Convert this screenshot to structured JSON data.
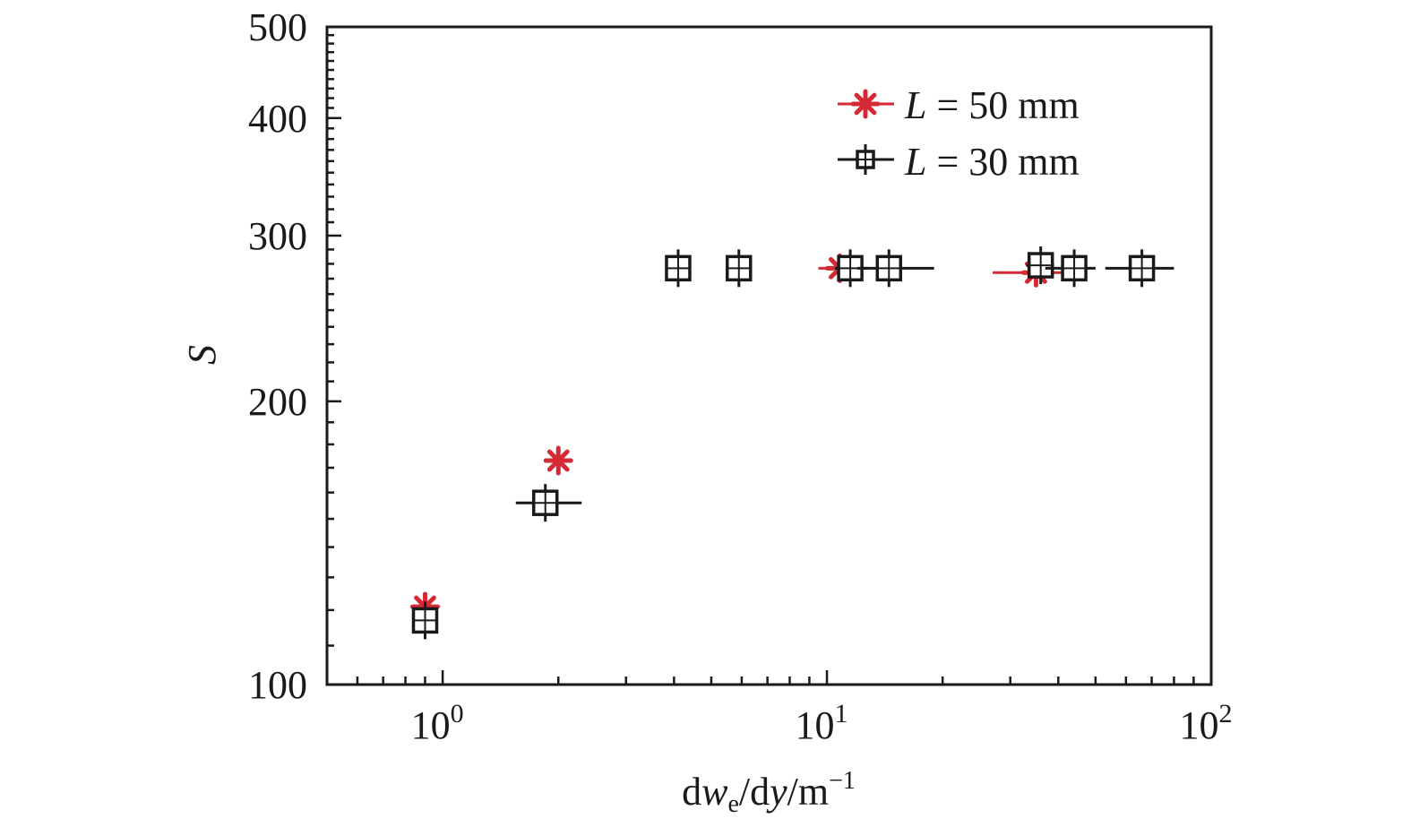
{
  "chart_data": {
    "type": "scatter",
    "title": "",
    "xlabel": {
      "d1": "d",
      "w": "w",
      "sub_e": "e",
      "mid": "/d",
      "y": "y",
      "unit": "/m",
      "sup": "−1"
    },
    "ylabel": "S",
    "x_scale": "log",
    "y_scale": "log",
    "xlim": [
      0.5,
      100
    ],
    "ylim": [
      100,
      500
    ],
    "x_ticks": [
      {
        "value": 1,
        "base": "10",
        "exp": "0"
      },
      {
        "value": 10,
        "base": "10",
        "exp": "1"
      },
      {
        "value": 100,
        "base": "10",
        "exp": "2"
      }
    ],
    "y_ticks": [
      {
        "value": 100,
        "label": "100"
      },
      {
        "value": 200,
        "label": "200"
      },
      {
        "value": 300,
        "label": "300"
      },
      {
        "value": 400,
        "label": "400"
      },
      {
        "value": 500,
        "label": "500"
      }
    ],
    "grid": false,
    "legend_position": "top-right",
    "legend": {
      "italic": "L",
      "series": [
        {
          "rest": " = 50 mm"
        },
        {
          "rest": " = 30 mm"
        }
      ]
    },
    "series": [
      {
        "name": "L = 50 mm",
        "marker": "asterisk",
        "color": "#d42a36",
        "points": [
          {
            "x": 0.9,
            "y": 121,
            "xerr_low": 0.9,
            "xerr_high": 0.9
          },
          {
            "x": 2.0,
            "y": 173,
            "xerr_low": 2.0,
            "xerr_high": 2.0
          },
          {
            "x": 10.8,
            "y": 277,
            "xerr_low": 9.5,
            "xerr_high": 12.5
          },
          {
            "x": 35,
            "y": 274,
            "xerr_low": 27,
            "xerr_high": 44
          }
        ]
      },
      {
        "name": "L = 30 mm",
        "marker": "square-cross",
        "color": "#1a1a1a",
        "points": [
          {
            "x": 0.9,
            "y": 117,
            "xerr_low": 0.85,
            "xerr_high": 0.95
          },
          {
            "x": 1.85,
            "y": 156,
            "xerr_low": 1.55,
            "xerr_high": 2.3
          },
          {
            "x": 4.1,
            "y": 277,
            "xerr_low": 4.1,
            "xerr_high": 4.1
          },
          {
            "x": 5.9,
            "y": 277,
            "xerr_low": 5.9,
            "xerr_high": 5.9
          },
          {
            "x": 11.5,
            "y": 277,
            "xerr_low": 10.5,
            "xerr_high": 12.8
          },
          {
            "x": 14.5,
            "y": 277,
            "xerr_low": 12,
            "xerr_high": 19
          },
          {
            "x": 36,
            "y": 279,
            "xerr_low": 33,
            "xerr_high": 39
          },
          {
            "x": 44,
            "y": 277,
            "xerr_low": 37,
            "xerr_high": 50
          },
          {
            "x": 66,
            "y": 277,
            "xerr_low": 53,
            "xerr_high": 80
          }
        ]
      }
    ]
  }
}
